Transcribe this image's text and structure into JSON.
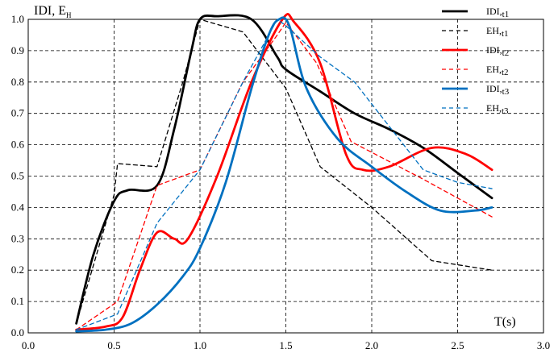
{
  "chart_data": {
    "type": "line",
    "ylabel_main": "IDI, E",
    "ylabel_sub": "H",
    "xlabel": "T(s)",
    "xlim": [
      0.0,
      3.0
    ],
    "ylim": [
      0.0,
      1.0
    ],
    "xticks": [
      "0.0",
      "0.5",
      "1.0",
      "1.5",
      "2.0",
      "2.5",
      "3.0"
    ],
    "yticks": [
      "0.0",
      "0.1",
      "0.2",
      "0.3",
      "0.4",
      "0.5",
      "0.6",
      "0.7",
      "0.8",
      "0.9",
      "1.0"
    ],
    "grid": true,
    "legend_position": "top-right",
    "series": [
      {
        "id": "idi-t1",
        "name_main": "IDI,",
        "name_sub": "t1",
        "color": "#000000",
        "style": "solid",
        "smooth": true,
        "x": [
          0.28,
          0.38,
          0.5,
          0.58,
          0.75,
          0.85,
          0.95,
          1.0,
          1.1,
          1.3,
          1.45,
          1.5,
          1.7,
          1.9,
          2.1,
          2.3,
          2.5,
          2.7
        ],
        "y": [
          0.03,
          0.25,
          0.42,
          0.455,
          0.47,
          0.65,
          0.9,
          1.0,
          1.01,
          1.0,
          0.88,
          0.84,
          0.77,
          0.7,
          0.65,
          0.59,
          0.51,
          0.43
        ]
      },
      {
        "id": "eh-t1",
        "name_main": "EH,",
        "name_sub": "t1",
        "color": "#000000",
        "style": "dashed",
        "smooth": false,
        "x": [
          0.28,
          0.5,
          0.52,
          0.75,
          0.9,
          1.0,
          1.25,
          1.5,
          1.7,
          2.0,
          2.35,
          2.7
        ],
        "y": [
          0.03,
          0.44,
          0.54,
          0.53,
          0.8,
          1.0,
          0.96,
          0.78,
          0.53,
          0.4,
          0.23,
          0.2
        ]
      },
      {
        "id": "idi-t2",
        "name_main": "IDI,",
        "name_sub": "t2",
        "color": "#ff0000",
        "style": "solid",
        "smooth": true,
        "x": [
          0.28,
          0.45,
          0.55,
          0.65,
          0.75,
          0.85,
          0.93,
          1.1,
          1.3,
          1.48,
          1.55,
          1.7,
          1.85,
          1.95,
          2.1,
          2.35,
          2.55,
          2.7
        ],
        "y": [
          0.01,
          0.02,
          0.05,
          0.2,
          0.32,
          0.3,
          0.3,
          0.5,
          0.8,
          1.0,
          0.99,
          0.86,
          0.57,
          0.52,
          0.53,
          0.59,
          0.57,
          0.52
        ]
      },
      {
        "id": "eh-t2",
        "name_main": "EH,",
        "name_sub": "t2",
        "color": "#ff0000",
        "style": "dashed",
        "smooth": false,
        "x": [
          0.28,
          0.52,
          0.75,
          0.95,
          1.0,
          1.25,
          1.45,
          1.5,
          1.68,
          1.88,
          2.3,
          2.7
        ],
        "y": [
          0.01,
          0.1,
          0.47,
          0.51,
          0.52,
          0.8,
          0.95,
          0.99,
          0.86,
          0.61,
          0.49,
          0.37
        ]
      },
      {
        "id": "idi-t3",
        "name_main": "IDI,",
        "name_sub": "t3",
        "color": "#0070c0",
        "style": "solid",
        "smooth": true,
        "x": [
          0.28,
          0.45,
          0.6,
          0.75,
          0.9,
          1.0,
          1.15,
          1.3,
          1.4,
          1.46,
          1.52,
          1.62,
          1.8,
          2.0,
          2.2,
          2.4,
          2.6,
          2.7
        ],
        "y": [
          0.005,
          0.01,
          0.03,
          0.09,
          0.18,
          0.27,
          0.48,
          0.78,
          0.95,
          1.0,
          0.98,
          0.78,
          0.62,
          0.53,
          0.45,
          0.39,
          0.39,
          0.4
        ]
      },
      {
        "id": "eh-t3",
        "name_main": "EH,",
        "name_sub": "t3",
        "color": "#0070c0",
        "style": "dashed",
        "smooth": false,
        "x": [
          0.28,
          0.52,
          0.75,
          1.0,
          1.25,
          1.45,
          1.5,
          1.7,
          1.9,
          2.1,
          2.3,
          2.5,
          2.7
        ],
        "y": [
          0.01,
          0.06,
          0.35,
          0.52,
          0.8,
          1.0,
          0.98,
          0.88,
          0.8,
          0.66,
          0.52,
          0.48,
          0.46
        ]
      }
    ]
  }
}
